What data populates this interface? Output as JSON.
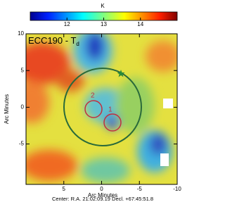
{
  "chart_data": {
    "type": "heatmap",
    "title": "ECC190 - T",
    "title_subscript": "d",
    "colorbar": {
      "label": "K",
      "lim": [
        11,
        15
      ],
      "ticks": [
        12,
        13,
        14
      ]
    },
    "x_label": "Arc Minutes",
    "xlim": [
      10,
      -10
    ],
    "xticks": [
      5,
      0,
      -5,
      -10
    ],
    "y_label": "Arc Minutes",
    "ylim": [
      -10.5,
      10
    ],
    "yticks": [
      -5,
      0,
      5,
      10
    ],
    "annotations": [
      "1",
      "2"
    ],
    "caption": "Center:  R.A. 21:02:09.19   Decl. +67:45:51.8"
  }
}
